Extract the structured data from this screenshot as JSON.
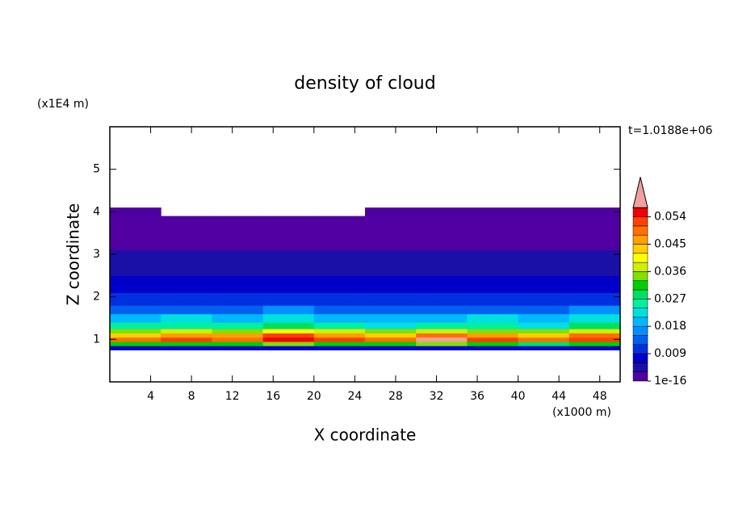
{
  "chart_data": {
    "type": "heatmap",
    "title": "density of cloud",
    "time_label": "t=1.0188e+06",
    "x_label": "X coordinate",
    "x_unit": "(x1000 m)",
    "y_label": "Z coordinate",
    "y_unit": "(x1E4 m)",
    "xlim": [
      0,
      50
    ],
    "ylim": [
      0,
      6
    ],
    "xticks": [
      4,
      8,
      12,
      16,
      20,
      24,
      28,
      32,
      36,
      40,
      44,
      48
    ],
    "yticks": [
      1,
      2,
      3,
      4,
      5
    ],
    "x_edges": [
      0,
      5,
      10,
      15,
      20,
      25,
      30,
      35,
      40,
      45,
      50
    ],
    "z_edges": [
      0.75,
      0.85,
      0.95,
      1.05,
      1.15,
      1.25,
      1.4,
      1.6,
      1.8,
      2.1,
      2.5,
      3.1,
      3.9,
      4.1
    ],
    "values": [
      [
        0.008,
        0.008,
        0.007,
        0.008,
        0.008,
        0.007,
        0.008,
        0.008,
        0.007,
        0.008
      ],
      [
        0.03,
        0.032,
        0.031,
        0.035,
        0.03,
        0.031,
        0.033,
        0.03,
        0.029,
        0.031
      ],
      [
        0.049,
        0.052,
        0.05,
        0.055,
        0.051,
        0.049,
        0.059,
        0.053,
        0.05,
        0.052
      ],
      [
        0.044,
        0.047,
        0.045,
        0.053,
        0.047,
        0.044,
        0.05,
        0.046,
        0.043,
        0.048
      ],
      [
        0.034,
        0.036,
        0.035,
        0.04,
        0.036,
        0.034,
        0.037,
        0.035,
        0.033,
        0.036
      ],
      [
        0.024,
        0.026,
        0.025,
        0.028,
        0.026,
        0.023,
        0.025,
        0.026,
        0.022,
        0.027
      ],
      [
        0.019,
        0.021,
        0.02,
        0.022,
        0.02,
        0.018,
        0.019,
        0.021,
        0.018,
        0.022
      ],
      [
        0.013,
        0.014,
        0.013,
        0.015,
        0.014,
        0.012,
        0.013,
        0.014,
        0.012,
        0.015
      ],
      [
        0.009,
        0.01,
        0.009,
        0.011,
        0.01,
        0.009,
        0.01,
        0.01,
        0.009,
        0.011
      ],
      [
        0.006,
        0.007,
        0.006,
        0.007,
        0.007,
        0.006,
        0.006,
        0.007,
        0.006,
        0.007
      ],
      [
        0.004,
        0.004,
        0.003,
        0.004,
        0.004,
        0.003,
        0.004,
        0.004,
        0.003,
        0.004
      ],
      [
        0.001,
        0.001,
        0.001,
        0.001,
        0.001,
        0.001,
        0.001,
        0.001,
        0.001,
        0.001
      ],
      [
        0.0005,
        null,
        null,
        null,
        null,
        0.0005,
        0.0005,
        0.0005,
        0.0005,
        0.0005
      ]
    ],
    "colorbar": {
      "levels": [
        1e-16,
        0.003,
        0.006,
        0.009,
        0.012,
        0.015,
        0.018,
        0.021,
        0.024,
        0.027,
        0.03,
        0.033,
        0.036,
        0.039,
        0.042,
        0.045,
        0.048,
        0.051,
        0.054,
        0.057
      ],
      "colors": [
        "#5000a0",
        "#1a10a8",
        "#0000c8",
        "#0030e0",
        "#0060f0",
        "#0090ff",
        "#00b8ff",
        "#00e0e0",
        "#00f0a0",
        "#00e060",
        "#00d000",
        "#80e000",
        "#d0f000",
        "#ffff00",
        "#ffd000",
        "#ffa000",
        "#ff7000",
        "#ff4000",
        "#f00000",
        "#f0a0a0"
      ],
      "ticks": [
        1e-16,
        0.009,
        0.018,
        0.027,
        0.036,
        0.045,
        0.054
      ]
    }
  }
}
